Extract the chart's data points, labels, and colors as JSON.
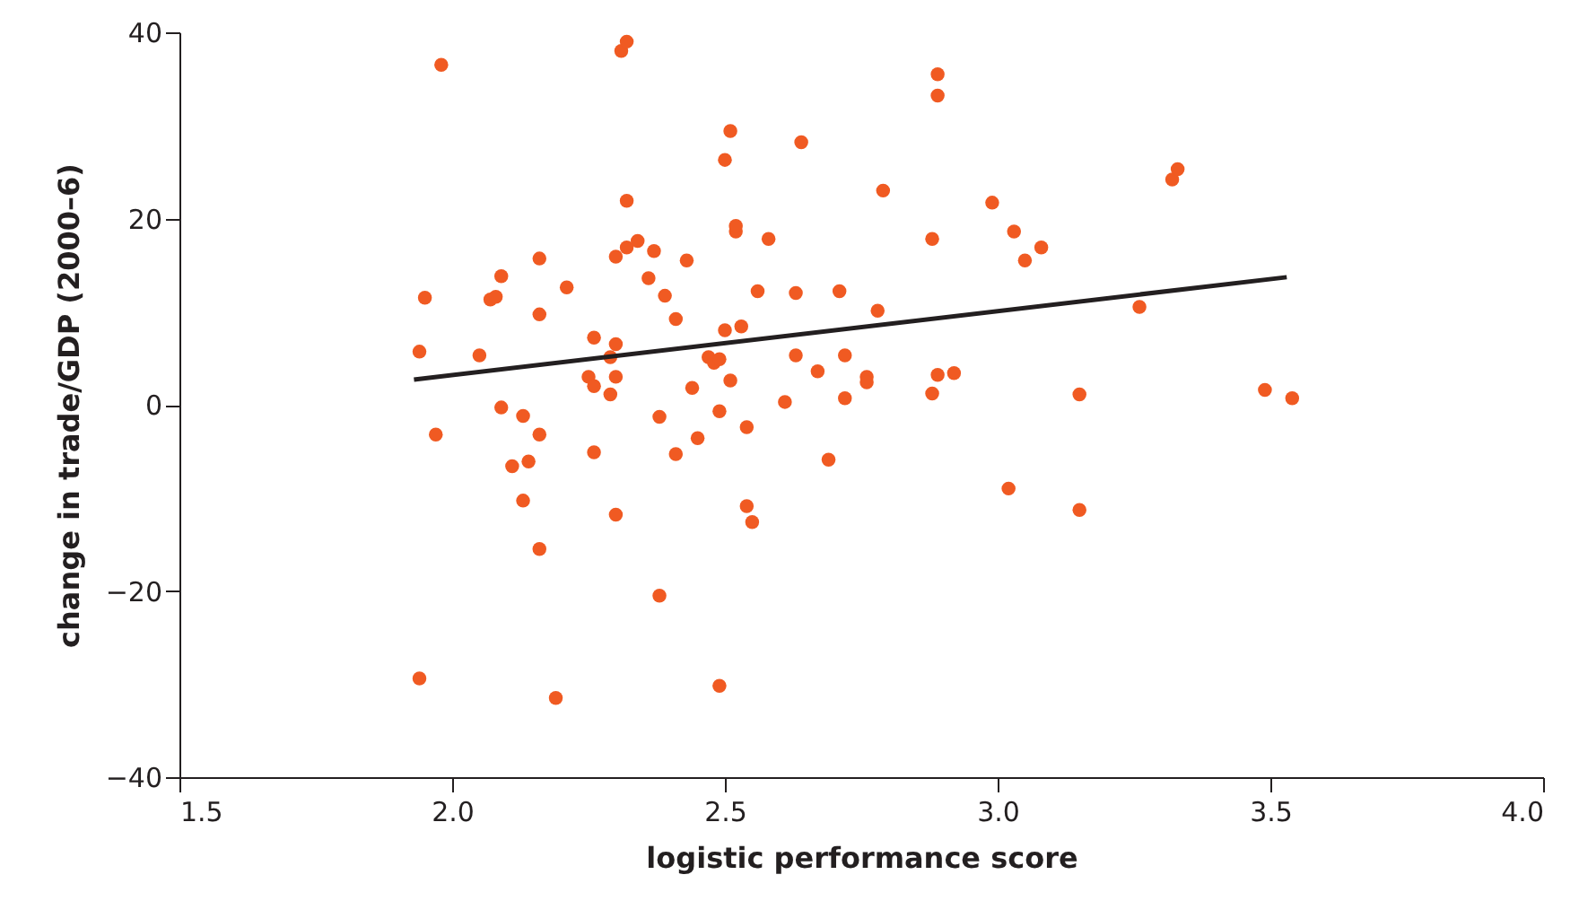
{
  "chart_data": {
    "type": "scatter",
    "xlabel": "logistic performance score",
    "ylabel": "change in trade/GDP (2000–6)",
    "xlim": [
      1.5,
      4.0
    ],
    "xticks": [
      {
        "value": 1.5,
        "label": "1.5"
      },
      {
        "value": 2,
        "label": "2.0"
      },
      {
        "value": 2.5,
        "label": "2.5"
      },
      {
        "value": 3,
        "label": "3.0"
      },
      {
        "value": 3.5,
        "label": "3.5"
      },
      {
        "value": 4,
        "label": "4.0"
      }
    ],
    "ylim": [
      -40,
      40
    ],
    "yticks": [
      {
        "value": -40,
        "label": "−40"
      },
      {
        "value": -20,
        "label": "−20"
      },
      0,
      20,
      40
    ],
    "grid": false,
    "series": [
      {
        "color": "#f05a22",
        "marker": "circle",
        "x": [
          1.94,
          1.94,
          1.95,
          1.97,
          1.98,
          2.05,
          2.07,
          2.09,
          2.08,
          2.09,
          2.11,
          2.13,
          2.13,
          2.14,
          2.16,
          2.16,
          2.16,
          2.16,
          2.19,
          2.21,
          2.26,
          2.25,
          2.26,
          2.26,
          2.29,
          2.29,
          2.3,
          2.3,
          2.3,
          2.3,
          2.31,
          2.32,
          2.32,
          2.32,
          2.34,
          2.36,
          2.37,
          2.38,
          2.38,
          2.39,
          2.41,
          2.41,
          2.43,
          2.44,
          2.45,
          2.47,
          2.48,
          2.49,
          2.49,
          2.49,
          2.5,
          2.5,
          2.51,
          2.51,
          2.52,
          2.52,
          2.53,
          2.54,
          2.54,
          2.55,
          2.56,
          2.58,
          2.61,
          2.63,
          2.63,
          2.64,
          2.67,
          2.69,
          2.71,
          2.72,
          2.72,
          2.76,
          2.76,
          2.78,
          2.79,
          2.88,
          2.88,
          2.89,
          2.89,
          2.89,
          2.92,
          2.99,
          3.02,
          3.03,
          3.05,
          3.08,
          3.15,
          3.15,
          3.26,
          3.32,
          3.33,
          3.49,
          3.54
        ],
        "values": [
          -29.4,
          5.7,
          11.5,
          -3.2,
          36.5,
          5.3,
          11.3,
          13.8,
          11.6,
          -0.3,
          -6.6,
          -1.2,
          -10.3,
          -6.1,
          15.7,
          9.7,
          -3.2,
          -15.5,
          -31.5,
          12.6,
          7.2,
          3.0,
          2.0,
          -5.1,
          1.1,
          5.1,
          15.9,
          6.5,
          -11.8,
          3.0,
          38,
          39,
          21.9,
          16.9,
          17.6,
          13.6,
          16.5,
          -1.3,
          -20.5,
          11.7,
          9.2,
          -5.3,
          15.5,
          1.8,
          -3.6,
          5.1,
          4.5,
          -0.7,
          4.9,
          -30.2,
          26.3,
          8.0,
          2.6,
          29.4,
          18.6,
          19.2,
          8.4,
          -2.4,
          -10.9,
          -12.6,
          12.2,
          17.8,
          0.3,
          12.0,
          5.3,
          28.2,
          3.6,
          -5.9,
          12.2,
          5.3,
          0.7,
          3.0,
          2.4,
          10.1,
          23.0,
          1.2,
          17.8,
          3.2,
          33.2,
          35.5,
          3.4,
          21.7,
          -9.0,
          18.6,
          15.5,
          16.9,
          1.1,
          -11.3,
          10.5,
          24.2,
          25.3,
          1.6,
          0.7
        ]
      },
      {
        "type": "line",
        "color": "#231f20",
        "x": [
          1.93,
          3.53
        ],
        "values": [
          2.7,
          13.7
        ]
      }
    ]
  }
}
